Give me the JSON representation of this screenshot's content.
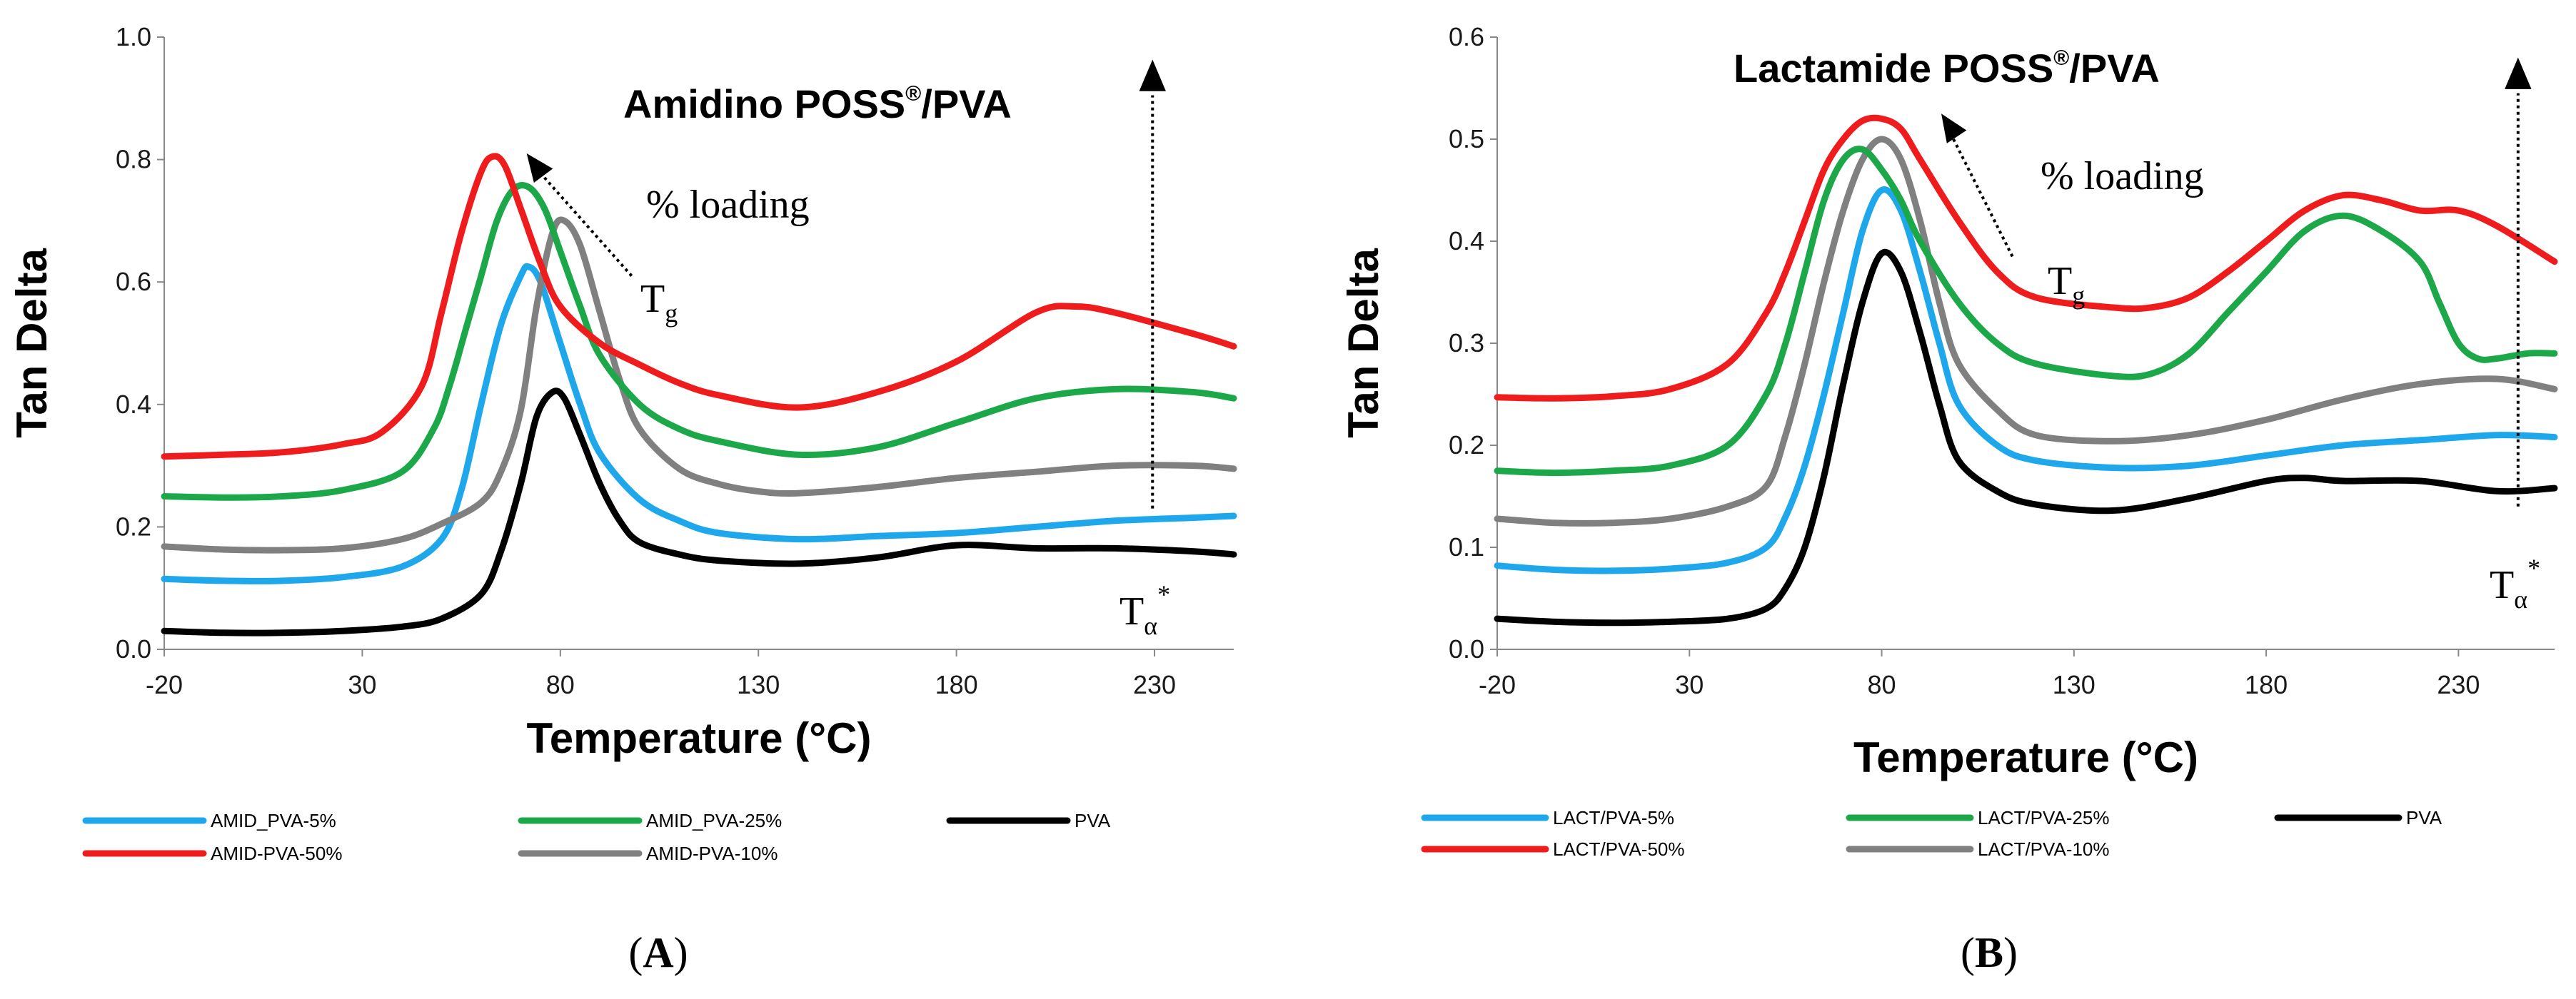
{
  "chart_data": [
    {
      "type": "line",
      "panel_label": "A",
      "title_main": "Amidino POSS",
      "title_sup": "®",
      "title_tail": "/PVA",
      "xlabel": "Temperature (°C)",
      "ylabel": "Tan Delta",
      "xlim": [
        -20,
        250
      ],
      "ylim": [
        0,
        1.0
      ],
      "x_ticks": [
        -20,
        30,
        80,
        130,
        180,
        230
      ],
      "y_ticks": [
        "0.0",
        "0.2",
        "0.4",
        "0.6",
        "0.8",
        "1.0"
      ],
      "annotations": {
        "loading": "% loading",
        "tg_main": "T",
        "tg_sub": "g",
        "ta_main": "T",
        "ta_sub": "α",
        "ta_sup": "*"
      },
      "series": [
        {
          "name": "AMID_PVA-5%",
          "color": "#1ea7ea",
          "x": [
            -20,
            -5,
            10,
            25,
            40,
            50,
            55,
            60,
            65,
            70,
            72,
            75,
            80,
            85,
            90,
            100,
            110,
            120,
            140,
            160,
            180,
            200,
            220,
            240,
            250
          ],
          "values": [
            0.115,
            0.112,
            0.112,
            0.118,
            0.135,
            0.18,
            0.26,
            0.4,
            0.53,
            0.61,
            0.625,
            0.6,
            0.5,
            0.4,
            0.32,
            0.245,
            0.21,
            0.19,
            0.18,
            0.185,
            0.19,
            0.2,
            0.21,
            0.215,
            0.218
          ]
        },
        {
          "name": "AMID_PVA-25%",
          "color": "#1ca849",
          "x": [
            -20,
            -5,
            10,
            25,
            40,
            48,
            52,
            56,
            60,
            64,
            68,
            72,
            76,
            80,
            85,
            90,
            100,
            110,
            120,
            140,
            160,
            180,
            200,
            220,
            240,
            250
          ],
          "values": [
            0.25,
            0.248,
            0.25,
            0.26,
            0.29,
            0.36,
            0.43,
            0.52,
            0.61,
            0.7,
            0.75,
            0.755,
            0.72,
            0.65,
            0.56,
            0.48,
            0.4,
            0.36,
            0.34,
            0.318,
            0.33,
            0.37,
            0.41,
            0.425,
            0.42,
            0.41
          ]
        },
        {
          "name": "PVA",
          "color": "#000000",
          "x": [
            -20,
            -5,
            10,
            25,
            40,
            50,
            60,
            65,
            70,
            74,
            78,
            81,
            85,
            90,
            95,
            100,
            110,
            120,
            140,
            160,
            180,
            200,
            220,
            240,
            250
          ],
          "values": [
            0.03,
            0.027,
            0.027,
            0.03,
            0.037,
            0.05,
            0.09,
            0.16,
            0.27,
            0.38,
            0.42,
            0.41,
            0.35,
            0.27,
            0.21,
            0.175,
            0.155,
            0.145,
            0.14,
            0.15,
            0.17,
            0.165,
            0.165,
            0.16,
            0.155
          ]
        },
        {
          "name": "AMID-PVA-50%",
          "color": "#ee1c1c",
          "x": [
            -20,
            -5,
            10,
            25,
            35,
            45,
            50,
            55,
            60,
            63,
            66,
            70,
            75,
            80,
            90,
            100,
            110,
            120,
            140,
            160,
            180,
            200,
            210,
            220,
            240,
            250
          ],
          "values": [
            0.315,
            0.318,
            0.322,
            0.335,
            0.355,
            0.43,
            0.55,
            0.68,
            0.78,
            0.805,
            0.79,
            0.72,
            0.63,
            0.56,
            0.5,
            0.465,
            0.435,
            0.415,
            0.395,
            0.42,
            0.47,
            0.55,
            0.56,
            0.55,
            0.515,
            0.495
          ]
        },
        {
          "name": "AMID-PVA-10%",
          "color": "#808080",
          "x": [
            -20,
            -5,
            10,
            25,
            40,
            50,
            60,
            65,
            70,
            74,
            78,
            81,
            85,
            90,
            95,
            100,
            110,
            120,
            130,
            140,
            160,
            180,
            200,
            220,
            240,
            250
          ],
          "values": [
            0.168,
            0.163,
            0.162,
            0.165,
            0.18,
            0.205,
            0.24,
            0.29,
            0.39,
            0.56,
            0.68,
            0.7,
            0.66,
            0.55,
            0.44,
            0.36,
            0.295,
            0.27,
            0.258,
            0.255,
            0.265,
            0.28,
            0.29,
            0.3,
            0.3,
            0.295
          ]
        }
      ]
    },
    {
      "type": "line",
      "panel_label": "B",
      "title_main": "Lactamide POSS",
      "title_sup": "®",
      "title_tail": "/PVA",
      "xlabel": "Temperature (°C)",
      "ylabel": "Tan Delta",
      "xlim": [
        -20,
        255
      ],
      "ylim": [
        0,
        0.6
      ],
      "x_ticks": [
        -20,
        30,
        80,
        130,
        180,
        230
      ],
      "y_ticks": [
        "0.0",
        "0.1",
        "0.2",
        "0.3",
        "0.4",
        "0.5",
        "0.6"
      ],
      "annotations": {
        "loading": "% loading",
        "tg_main": "T",
        "tg_sub": "g",
        "ta_main": "T",
        "ta_sub": "α",
        "ta_sup": "*"
      },
      "series": [
        {
          "name": "LACT/PVA-5%",
          "color": "#1ea7ea",
          "x": [
            -20,
            -5,
            10,
            25,
            40,
            50,
            55,
            60,
            65,
            70,
            75,
            80,
            85,
            90,
            95,
            100,
            110,
            120,
            140,
            160,
            180,
            200,
            220,
            240,
            255
          ],
          "values": [
            0.082,
            0.078,
            0.077,
            0.079,
            0.085,
            0.1,
            0.13,
            0.18,
            0.25,
            0.33,
            0.41,
            0.45,
            0.43,
            0.37,
            0.3,
            0.24,
            0.2,
            0.185,
            0.178,
            0.18,
            0.19,
            0.2,
            0.205,
            0.21,
            0.208
          ]
        },
        {
          "name": "LACT/PVA-25%",
          "color": "#1ca849",
          "x": [
            -20,
            -5,
            10,
            25,
            40,
            50,
            55,
            60,
            65,
            70,
            75,
            80,
            85,
            90,
            100,
            110,
            120,
            140,
            150,
            160,
            170,
            180,
            190,
            200,
            210,
            220,
            225,
            230,
            235,
            240,
            248,
            255
          ],
          "values": [
            0.175,
            0.173,
            0.175,
            0.18,
            0.2,
            0.25,
            0.3,
            0.37,
            0.44,
            0.48,
            0.49,
            0.47,
            0.44,
            0.4,
            0.34,
            0.3,
            0.28,
            0.268,
            0.27,
            0.29,
            0.33,
            0.37,
            0.41,
            0.425,
            0.41,
            0.38,
            0.34,
            0.3,
            0.285,
            0.285,
            0.29,
            0.29
          ]
        },
        {
          "name": "PVA",
          "color": "#000000",
          "x": [
            -20,
            -5,
            10,
            25,
            40,
            50,
            55,
            60,
            65,
            70,
            75,
            80,
            85,
            90,
            95,
            100,
            110,
            120,
            140,
            160,
            180,
            190,
            200,
            220,
            240,
            255
          ],
          "values": [
            0.03,
            0.027,
            0.026,
            0.027,
            0.03,
            0.04,
            0.06,
            0.1,
            0.17,
            0.26,
            0.34,
            0.388,
            0.37,
            0.31,
            0.24,
            0.185,
            0.155,
            0.142,
            0.136,
            0.148,
            0.165,
            0.168,
            0.165,
            0.165,
            0.155,
            0.158
          ]
        },
        {
          "name": "LACT/PVA-50%",
          "color": "#ee1c1c",
          "x": [
            -20,
            -5,
            10,
            25,
            40,
            50,
            55,
            60,
            65,
            70,
            75,
            80,
            85,
            90,
            100,
            110,
            120,
            140,
            150,
            160,
            170,
            180,
            190,
            200,
            210,
            220,
            230,
            240,
            255
          ],
          "values": [
            0.247,
            0.246,
            0.248,
            0.255,
            0.28,
            0.33,
            0.37,
            0.42,
            0.47,
            0.5,
            0.518,
            0.52,
            0.51,
            0.48,
            0.42,
            0.37,
            0.345,
            0.335,
            0.335,
            0.345,
            0.37,
            0.4,
            0.43,
            0.445,
            0.44,
            0.43,
            0.43,
            0.415,
            0.38
          ]
        },
        {
          "name": "LACT/PVA-10%",
          "color": "#808080",
          "x": [
            -20,
            -5,
            10,
            25,
            40,
            50,
            55,
            60,
            65,
            70,
            75,
            80,
            85,
            90,
            95,
            100,
            110,
            120,
            140,
            160,
            180,
            200,
            220,
            240,
            255
          ],
          "values": [
            0.128,
            0.124,
            0.124,
            0.128,
            0.14,
            0.16,
            0.21,
            0.28,
            0.36,
            0.43,
            0.48,
            0.5,
            0.48,
            0.42,
            0.34,
            0.28,
            0.235,
            0.21,
            0.204,
            0.21,
            0.225,
            0.245,
            0.26,
            0.265,
            0.255
          ]
        }
      ]
    }
  ]
}
